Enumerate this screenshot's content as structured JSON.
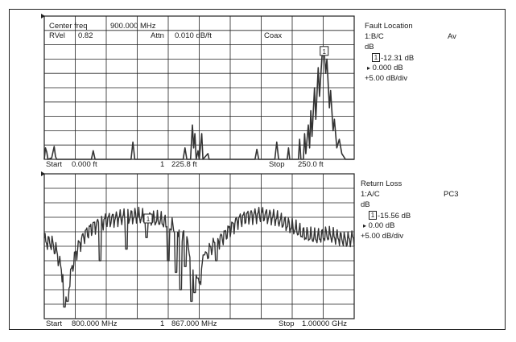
{
  "chart_data": [
    {
      "type": "line",
      "header": {
        "center_label": "Center freq",
        "center_value": "900.000 MHz",
        "rvel_label": "RVel",
        "rvel_value": "0.82",
        "attn_label": "Attn",
        "attn_value": "0.010 dB/ft",
        "cable": "Coax"
      },
      "footer": {
        "start_label": "Start",
        "start_value": "0.000 ft",
        "marker_label": "1",
        "marker_value": "225.8 ft",
        "stop_label": "Stop",
        "stop_value": "250.0 ft"
      },
      "side": {
        "title": "Fault Location",
        "channel": "1:B/C",
        "mode": "Av",
        "unit": "dB",
        "marker_num": "1",
        "marker_value": "-12.31 dB",
        "ref_symbol": "▸",
        "ref_value": "0.000 dB",
        "scale": "+5.00 dB/div"
      },
      "x_range": [
        0,
        250
      ],
      "y_range": [
        -50,
        0
      ],
      "marker": {
        "x": 225.8,
        "y": -12.31
      },
      "series": [
        {
          "points": [
            [
              0,
              -50
            ],
            [
              1,
              -46
            ],
            [
              2,
              -47.5
            ],
            [
              3,
              -50
            ],
            [
              6,
              -49.5
            ],
            [
              8,
              -45.5
            ],
            [
              9,
              -49
            ],
            [
              10,
              -50
            ],
            [
              38,
              -50
            ],
            [
              39.5,
              -47
            ],
            [
              41,
              -50
            ],
            [
              70,
              -50
            ],
            [
              71.5,
              -44
            ],
            [
              73,
              -50
            ],
            [
              112,
              -50
            ],
            [
              113.5,
              -46
            ],
            [
              115,
              -50
            ],
            [
              118,
              -50
            ],
            [
              119.5,
              -38
            ],
            [
              120.5,
              -46
            ],
            [
              121.5,
              -41
            ],
            [
              122.5,
              -50
            ],
            [
              124,
              -47
            ],
            [
              125,
              -50
            ],
            [
              127,
              -41
            ],
            [
              128,
              -50
            ],
            [
              132,
              -48
            ],
            [
              133,
              -50
            ],
            [
              170,
              -50
            ],
            [
              171.5,
              -46.5
            ],
            [
              173,
              -50
            ],
            [
              186,
              -50
            ],
            [
              187.5,
              -44
            ],
            [
              189,
              -50
            ],
            [
              196,
              -50
            ],
            [
              197,
              -46
            ],
            [
              198,
              -50
            ],
            [
              205,
              -50
            ],
            [
              206,
              -43
            ],
            [
              207,
              -50
            ],
            [
              209,
              -50
            ],
            [
              210,
              -41
            ],
            [
              211,
              -48
            ],
            [
              213,
              -38
            ],
            [
              214,
              -46
            ],
            [
              215,
              -33
            ],
            [
              216,
              -42
            ],
            [
              218,
              -25
            ],
            [
              219,
              -36
            ],
            [
              221,
              -18
            ],
            [
              222,
              -28
            ],
            [
              224,
              -14
            ],
            [
              225.8,
              -12.31
            ],
            [
              227,
              -20
            ],
            [
              228,
              -15
            ],
            [
              230,
              -32
            ],
            [
              231,
              -26
            ],
            [
              233,
              -40
            ],
            [
              234,
              -36
            ],
            [
              236,
              -46
            ],
            [
              238,
              -43
            ],
            [
              240,
              -48
            ],
            [
              243,
              -50
            ],
            [
              250,
              -50
            ]
          ]
        }
      ]
    },
    {
      "type": "line",
      "footer": {
        "start_label": "Start",
        "start_value": "800.000 MHz",
        "marker_label": "1",
        "marker_value": "867.000  MHz",
        "stop_label": "Stop",
        "stop_value": "1.00000 GHz"
      },
      "side": {
        "title": "Return Loss",
        "channel": "1:A/C",
        "mode": "PC3",
        "unit": "dB",
        "marker_num": "1",
        "marker_value": "-15.56 dB",
        "ref_symbol": "▸",
        "ref_value": "0.00 dB",
        "scale": "+5.00 dB/div"
      },
      "x_range": [
        800,
        1000
      ],
      "y_range": [
        -50,
        0
      ],
      "marker": {
        "x": 867,
        "y": -15.56
      }
    }
  ]
}
